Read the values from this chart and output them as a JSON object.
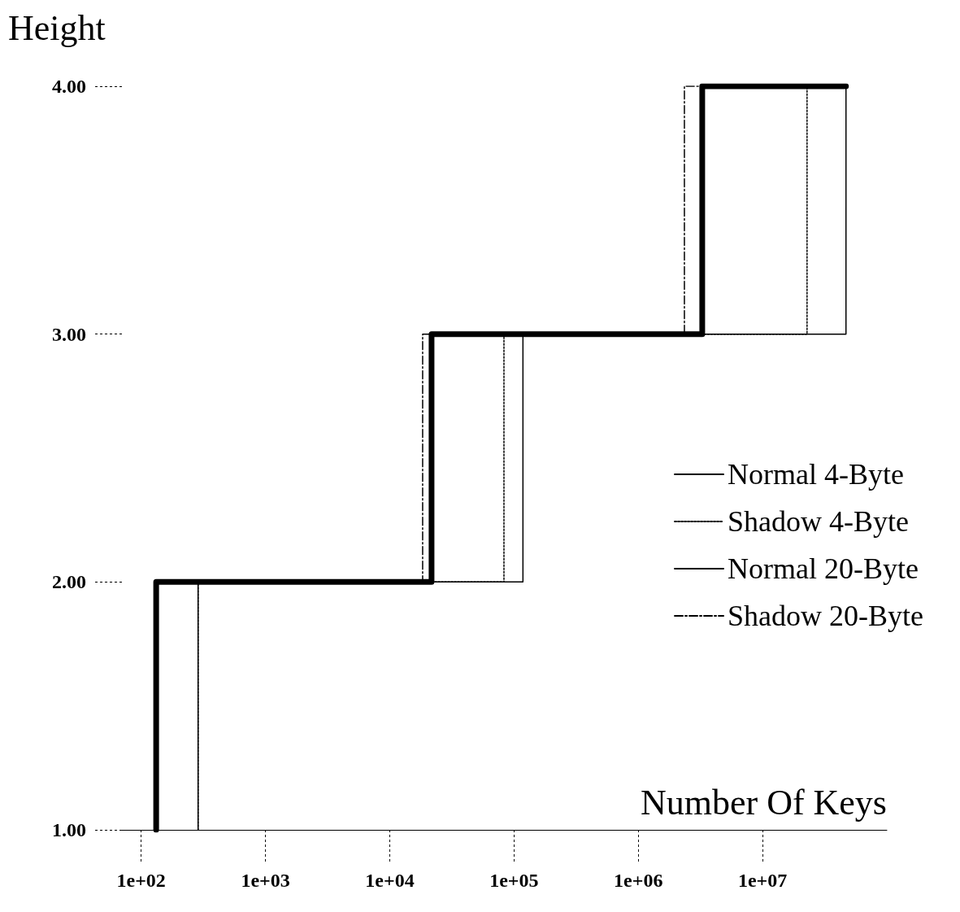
{
  "chart_data": {
    "type": "step",
    "xlabel": "Number Of Keys",
    "ylabel": "Height",
    "log": "x",
    "xlim": [
      70,
      100000000
    ],
    "ylim": [
      1,
      4
    ],
    "xticks": [
      {
        "value": 100,
        "label": "1e+02"
      },
      {
        "value": 1000,
        "label": "1e+03"
      },
      {
        "value": 10000,
        "label": "1e+04"
      },
      {
        "value": 100000,
        "label": "1e+05"
      },
      {
        "value": 1000000,
        "label": "1e+06"
      },
      {
        "value": 10000000,
        "label": "1e+07"
      }
    ],
    "yticks": [
      {
        "value": 1,
        "label": "1.00"
      },
      {
        "value": 2,
        "label": "2.00"
      },
      {
        "value": 3,
        "label": "3.00"
      },
      {
        "value": 4,
        "label": "4.00"
      }
    ],
    "grid": false,
    "legend": "right",
    "marker": "none",
    "series": [
      {
        "name": "Normal 4-Byte",
        "color": "#000000",
        "line_style": "solid",
        "x": [
          287,
          118000,
          46900000,
          46900000
        ],
        "values": [
          1,
          2,
          3,
          4
        ]
      },
      {
        "name": "Shadow 4-Byte",
        "color": "#000000",
        "line_style": "dotted",
        "x": [
          287,
          83000,
          22800000,
          46900000
        ],
        "values": [
          1,
          2,
          3,
          4
        ]
      },
      {
        "name": "Normal 20-Byte",
        "color": "#000000",
        "line_style": "solid",
        "x": [
          132,
          21700,
          3270000,
          46900000
        ],
        "values": [
          1,
          2,
          3,
          4
        ]
      },
      {
        "name": "Shadow 20-Byte",
        "color": "#000000",
        "line_style": "dashed",
        "x": [
          132,
          18400,
          2350000,
          46900000
        ],
        "values": [
          1,
          2,
          3,
          4
        ]
      }
    ]
  }
}
